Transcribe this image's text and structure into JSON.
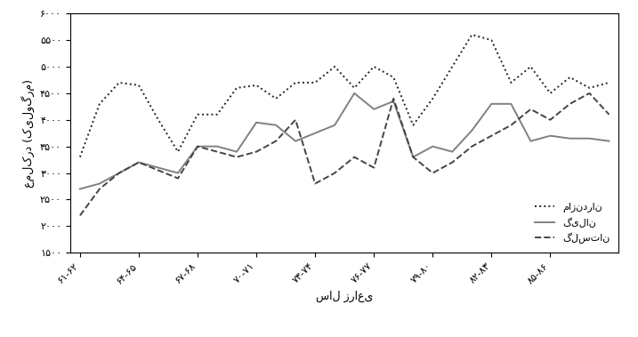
{
  "chart_data": {
    "type": "line",
    "x_label": "سال زراعی",
    "y_label": "عملکرد (کیلوگرم)",
    "categories": [
      "۶۱-۶۲",
      null,
      null,
      "۶۴-۶۵",
      null,
      null,
      "۶۷-۶۸",
      null,
      null,
      "۷۰-۷۱",
      null,
      null,
      "۷۳-۷۴",
      null,
      null,
      "۷۶-۷۷",
      null,
      null,
      "۷۹-۸۰",
      null,
      null,
      "۸۲-۸۳",
      null,
      null,
      "۸۵-۸۶",
      null,
      null,
      null
    ],
    "series": [
      {
        "name": "مازندران",
        "color": "#222222",
        "line_style": "dotted",
        "values": [
          3300,
          4300,
          4700,
          4650,
          4000,
          3400,
          4100,
          4100,
          4600,
          4650,
          4400,
          4700,
          4700,
          5000,
          4600,
          5000,
          4800,
          3900,
          4400,
          5000,
          5600,
          5500,
          4700,
          5000,
          4500,
          4800,
          4600,
          4700
        ]
      },
      {
        "name": "گیلان",
        "color": "#808080",
        "line_style": "solid",
        "values": [
          2700,
          2800,
          3000,
          3200,
          3100,
          3000,
          3500,
          3500,
          3400,
          3950,
          3900,
          3600,
          3750,
          3900,
          4500,
          4200,
          4350,
          3300,
          3500,
          3400,
          3800,
          4300,
          4300,
          3600,
          3700,
          3650,
          3650,
          3600
        ]
      },
      {
        "name": "گلستان",
        "color": "#444444",
        "line_style": "dashed",
        "values": [
          2200,
          2700,
          3000,
          3200,
          3050,
          2900,
          3500,
          3400,
          3300,
          3400,
          3600,
          4000,
          2800,
          3000,
          3300,
          3100,
          4400,
          3300,
          3000,
          3200,
          3500,
          3700,
          3900,
          4200,
          4000,
          4300,
          4500,
          4100
        ]
      }
    ],
    "ylim": [
      1500,
      6000
    ],
    "yticks": [
      {
        "value": 1500,
        "label": "۱۵۰۰"
      },
      {
        "value": 2000,
        "label": "۲۰۰۰"
      },
      {
        "value": 2500,
        "label": "۲۵۰۰"
      },
      {
        "value": 3000,
        "label": "۳۰۰۰"
      },
      {
        "value": 3500,
        "label": "۳۵۰۰"
      },
      {
        "value": 4000,
        "label": "۴۰۰۰"
      },
      {
        "value": 4500,
        "label": "۴۵۰۰"
      },
      {
        "value": 5000,
        "label": "۵۰۰۰"
      },
      {
        "value": 5500,
        "label": "۵۵۰۰"
      },
      {
        "value": 6000,
        "label": "۶۰۰۰"
      }
    ],
    "legend": "lower right",
    "grid": false
  }
}
